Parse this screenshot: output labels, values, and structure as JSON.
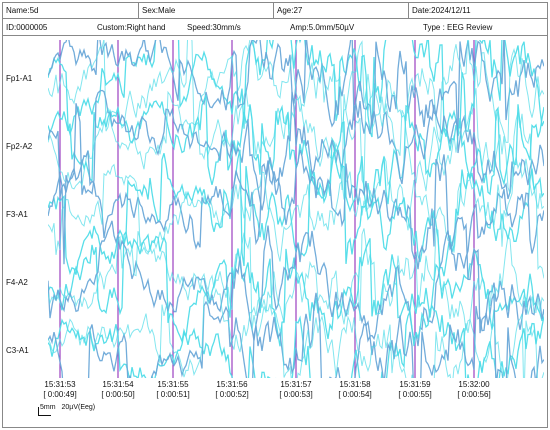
{
  "header": {
    "name": "Name:5d",
    "sex": "Sex:Male",
    "age": "Age:27",
    "date": "Date:2024/12/11",
    "id": "ID:0000005",
    "custom": "Custom:Right hand",
    "speed": "Speed:30mm/s",
    "amp": "Amp:5.0mm/50µV",
    "type": "Type : EEG Review"
  },
  "channels": [
    "Fp1-A1",
    "Fp2-A2",
    "F3-A1",
    "F4-A2",
    "C3-A1"
  ],
  "time_marks": [
    {
      "clock": "15:31:53",
      "elapsed": "[ 0:00:49]"
    },
    {
      "clock": "15:31:54",
      "elapsed": "[ 0:00:50]"
    },
    {
      "clock": "15:31:55",
      "elapsed": "[ 0:00:51]"
    },
    {
      "clock": "15:31:56",
      "elapsed": "[ 0:00:52]"
    },
    {
      "clock": "15:31:57",
      "elapsed": "[ 0:00:53]"
    },
    {
      "clock": "15:31:58",
      "elapsed": "[ 0:00:54]"
    },
    {
      "clock": "15:31:59",
      "elapsed": "[ 0:00:55]"
    },
    {
      "clock": "15:32:00",
      "elapsed": "[ 0:00:56]"
    }
  ],
  "scale": {
    "time": "5mm",
    "amp": "20µV(Eeg)"
  },
  "colors": {
    "trace": "#4fdce8",
    "trace_dark": "#6aa8d8",
    "marker": "#9b3fc0",
    "border": "#888888"
  }
}
